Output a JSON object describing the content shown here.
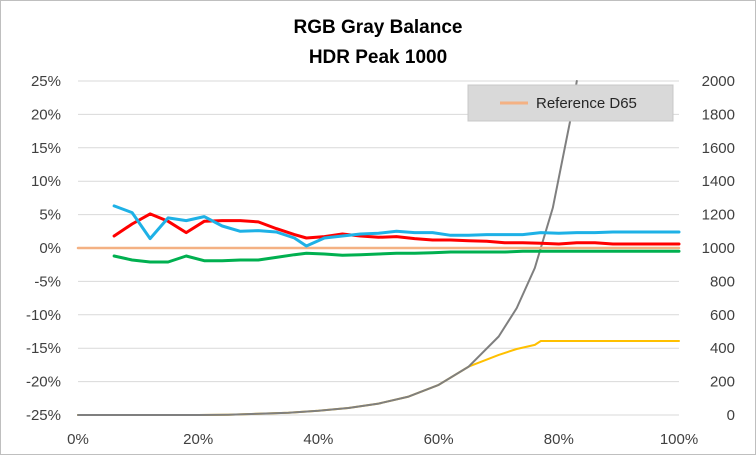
{
  "chart_data": {
    "type": "line",
    "title": "RGB Gray Balance",
    "subtitle": "HDR Peak 1000",
    "xlabel": "",
    "ylabel": "",
    "xlim": [
      0,
      100
    ],
    "ylim": [
      -25,
      25
    ],
    "y2lim": [
      0,
      2000
    ],
    "x_ticks": [
      "0%",
      "20%",
      "40%",
      "60%",
      "80%",
      "100%"
    ],
    "y_ticks": [
      "25%",
      "20%",
      "15%",
      "10%",
      "5%",
      "0%",
      "-5%",
      "-10%",
      "-15%",
      "-20%",
      "-25%"
    ],
    "y2_ticks": [
      "2000",
      "1800",
      "1600",
      "1400",
      "1200",
      "1000",
      "800",
      "600",
      "400",
      "200",
      "0"
    ],
    "grid": "horizontal",
    "legend": {
      "position": "top-right",
      "entries": [
        {
          "name": "Reference D65",
          "color": "#f4b183"
        }
      ]
    },
    "series": [
      {
        "key": "reference",
        "name": "Reference D65",
        "color": "#f4b183",
        "axis": "left",
        "x": [
          0,
          100
        ],
        "y": [
          0,
          0
        ]
      },
      {
        "key": "red",
        "color": "#ff0000",
        "axis": "left",
        "x": [
          6,
          9,
          12,
          15,
          18,
          21,
          24,
          27,
          30,
          33,
          36,
          38,
          41,
          44,
          47,
          50,
          53,
          56,
          59,
          62,
          65,
          68,
          71,
          74,
          77,
          80,
          83,
          86,
          89,
          92,
          95,
          98,
          100
        ],
        "y": [
          1.8,
          3.6,
          5.1,
          4.0,
          2.3,
          4.0,
          4.1,
          4.1,
          3.9,
          2.9,
          2.0,
          1.5,
          1.7,
          2.1,
          1.8,
          1.6,
          1.7,
          1.4,
          1.2,
          1.2,
          1.1,
          1.0,
          0.8,
          0.8,
          0.7,
          0.6,
          0.8,
          0.8,
          0.6,
          0.6,
          0.6,
          0.6,
          0.6
        ]
      },
      {
        "key": "green",
        "color": "#00b050",
        "axis": "left",
        "x": [
          6,
          9,
          12,
          15,
          18,
          21,
          24,
          27,
          30,
          33,
          36,
          38,
          41,
          44,
          47,
          50,
          53,
          56,
          59,
          62,
          65,
          68,
          71,
          74,
          77,
          80,
          83,
          86,
          89,
          92,
          95,
          98,
          100
        ],
        "y": [
          -1.2,
          -1.8,
          -2.1,
          -2.1,
          -1.2,
          -1.9,
          -1.9,
          -1.8,
          -1.8,
          -1.4,
          -1.0,
          -0.8,
          -0.9,
          -1.1,
          -1.0,
          -0.9,
          -0.8,
          -0.8,
          -0.7,
          -0.6,
          -0.6,
          -0.6,
          -0.6,
          -0.5,
          -0.5,
          -0.5,
          -0.5,
          -0.5,
          -0.5,
          -0.5,
          -0.5,
          -0.5,
          -0.5
        ]
      },
      {
        "key": "blue",
        "color": "#1eb1e6",
        "axis": "left",
        "x": [
          6,
          9,
          12,
          15,
          18,
          21,
          24,
          27,
          30,
          33,
          36,
          38,
          41,
          44,
          47,
          50,
          53,
          56,
          59,
          62,
          65,
          68,
          71,
          74,
          77,
          80,
          83,
          86,
          89,
          92,
          95,
          98,
          100
        ],
        "y": [
          6.3,
          5.3,
          1.4,
          4.5,
          4.1,
          4.7,
          3.3,
          2.5,
          2.6,
          2.4,
          1.5,
          0.3,
          1.5,
          1.8,
          2.1,
          2.2,
          2.5,
          2.3,
          2.3,
          1.9,
          1.9,
          2.0,
          2.0,
          2.0,
          2.3,
          2.2,
          2.3,
          2.3,
          2.4,
          2.4,
          2.4,
          2.4,
          2.4
        ]
      },
      {
        "key": "target_luminance",
        "color": "#7f7f7f",
        "axis": "right",
        "x": [
          0,
          20,
          25,
          30,
          35,
          40,
          45,
          50,
          55,
          60,
          65,
          70,
          73,
          76,
          79,
          82,
          83
        ],
        "y": [
          0,
          0,
          2,
          7,
          14,
          25,
          42,
          68,
          110,
          180,
          290,
          470,
          640,
          880,
          1240,
          1780,
          2000
        ]
      },
      {
        "key": "measured_luminance",
        "color": "#ffc000",
        "axis": "right",
        "x": [
          0,
          20,
          25,
          30,
          35,
          40,
          45,
          50,
          55,
          60,
          65,
          70,
          73,
          76,
          77,
          100
        ],
        "y": [
          0,
          0,
          2,
          7,
          14,
          25,
          42,
          68,
          110,
          180,
          290,
          360,
          395,
          420,
          443,
          443
        ]
      }
    ]
  }
}
